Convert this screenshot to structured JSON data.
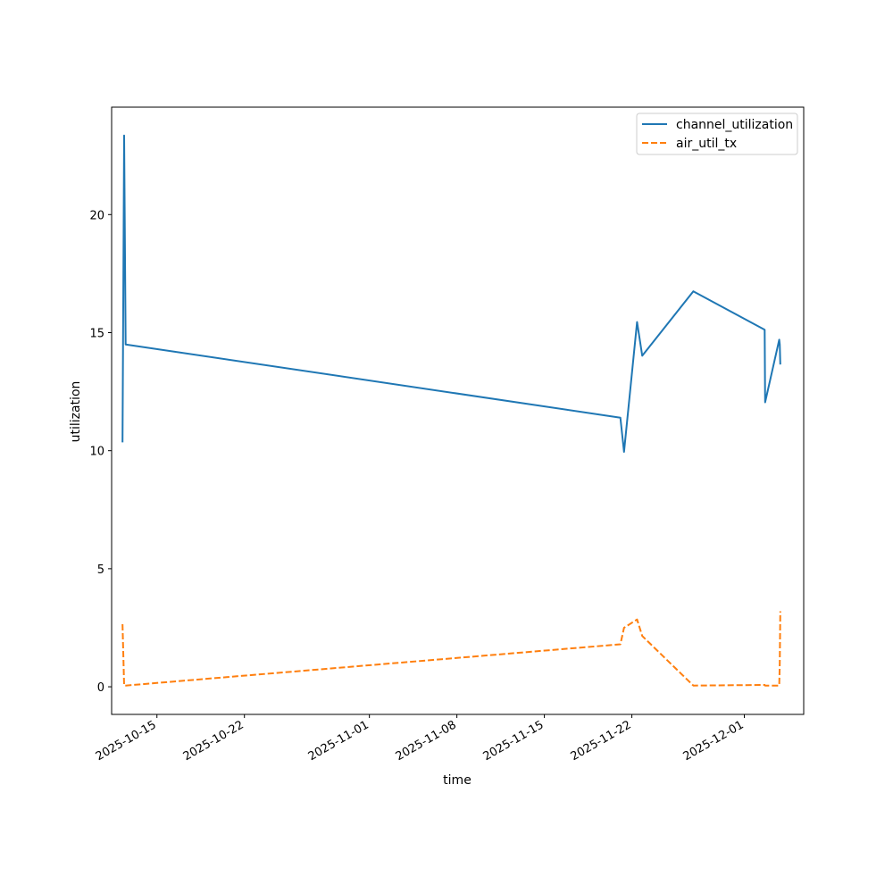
{
  "chart_data": {
    "type": "line",
    "title": "",
    "xlabel": "time",
    "ylabel": "utilization",
    "x_axis_type": "date",
    "xlim": [
      "2025-10-11 09:00",
      "2025-12-05 18:00"
    ],
    "ylim": [
      -1.17,
      24.55
    ],
    "x_ticks": [
      "2025-10-15",
      "2025-10-22",
      "2025-11-01",
      "2025-11-08",
      "2025-11-15",
      "2025-11-22",
      "2025-12-01"
    ],
    "y_ticks": [
      0,
      5,
      10,
      15,
      20
    ],
    "grid": false,
    "legend_position": "upper right",
    "series": [
      {
        "name": "channel_utilization",
        "color": "#1f77b4",
        "style": "solid",
        "points": [
          [
            "2025-10-12 06:00",
            10.35
          ],
          [
            "2025-10-12 09:00",
            23.35
          ],
          [
            "2025-10-12 12:00",
            14.5
          ],
          [
            "2025-11-21 02:00",
            11.4
          ],
          [
            "2025-11-21 09:00",
            9.95
          ],
          [
            "2025-11-22 10:00",
            15.45
          ],
          [
            "2025-11-22 20:00",
            14.02
          ],
          [
            "2025-11-26 22:00",
            16.75
          ],
          [
            "2025-12-02 15:00",
            15.12
          ],
          [
            "2025-12-02 16:00",
            12.05
          ],
          [
            "2025-12-03 19:00",
            14.7
          ],
          [
            "2025-12-03 20:00",
            14.5
          ],
          [
            "2025-12-03 21:00",
            13.65
          ]
        ]
      },
      {
        "name": "air_util_tx",
        "color": "#ff7f0e",
        "style": "dashed",
        "points": [
          [
            "2025-10-12 06:00",
            2.65
          ],
          [
            "2025-10-12 09:00",
            0.05
          ],
          [
            "2025-10-12 12:00",
            0.05
          ],
          [
            "2025-11-21 02:00",
            1.8
          ],
          [
            "2025-11-21 09:00",
            2.5
          ],
          [
            "2025-11-22 10:00",
            2.85
          ],
          [
            "2025-11-22 20:00",
            2.15
          ],
          [
            "2025-11-26 22:00",
            0.05
          ],
          [
            "2025-12-02 15:00",
            0.08
          ],
          [
            "2025-12-02 16:00",
            0.05
          ],
          [
            "2025-12-03 19:00",
            0.05
          ],
          [
            "2025-12-03 20:00",
            1.0
          ],
          [
            "2025-12-03 21:00",
            3.2
          ]
        ]
      }
    ]
  }
}
